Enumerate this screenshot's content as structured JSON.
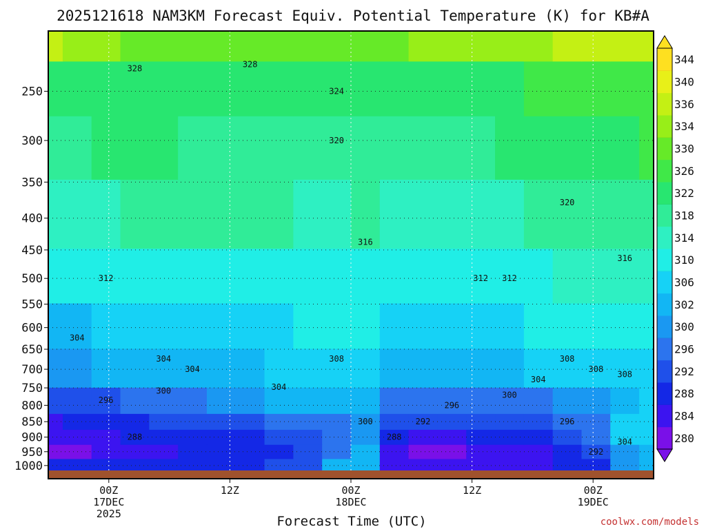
{
  "chart_data": {
    "type": "heatmap",
    "title": "2025121618 NAM3KM Forecast Equiv. Potential Temperature (K) for KB#A",
    "xlabel": "Forecast Time (UTC)",
    "ylabel": "",
    "y_scale": "log",
    "y_inverted": true,
    "ylim": [
      1000,
      200
    ],
    "y_ticks": [
      250,
      300,
      350,
      400,
      450,
      500,
      550,
      600,
      650,
      700,
      750,
      800,
      850,
      900,
      950,
      1000
    ],
    "x_range_hours": [
      0,
      60
    ],
    "x_ticks": [
      {
        "hour": 6,
        "lines": [
          "00Z",
          "17DEC",
          "2025"
        ]
      },
      {
        "hour": 18,
        "lines": [
          "12Z"
        ]
      },
      {
        "hour": 30,
        "lines": [
          "00Z",
          "18DEC"
        ]
      },
      {
        "hour": 42,
        "lines": [
          "12Z"
        ]
      },
      {
        "hour": 54,
        "lines": [
          "00Z",
          "19DEC"
        ]
      }
    ],
    "grid": true,
    "colorbar": {
      "position": "right",
      "levels": [
        280,
        284,
        288,
        292,
        296,
        300,
        302,
        306,
        310,
        314,
        318,
        322,
        326,
        330,
        334,
        336,
        340,
        344
      ],
      "colors": [
        "#7a10e8",
        "#3c14f0",
        "#1428e6",
        "#1f50ea",
        "#2c74ee",
        "#1a98f2",
        "#12b6f4",
        "#16d2f6",
        "#20eee6",
        "#2ef0c2",
        "#30ec98",
        "#28e670",
        "#40e848",
        "#66ea28",
        "#98ee18",
        "#c4f014",
        "#e8f018",
        "#fee020"
      ]
    },
    "series": [
      {
        "pressure": 1000,
        "values": [
          288,
          288,
          288,
          288,
          289,
          290,
          290,
          291,
          292,
          295,
          302,
          304,
          286,
          285,
          285,
          286,
          286,
          287,
          289,
          291,
          300,
          302
        ]
      },
      {
        "pressure": 950,
        "values": [
          282,
          283,
          285,
          286,
          287,
          288,
          288,
          289,
          290,
          294,
          299,
          303,
          284,
          283,
          283,
          284,
          285,
          286,
          288,
          292,
          300,
          303
        ]
      },
      {
        "pressure": 900,
        "values": [
          284,
          285,
          287,
          288,
          289,
          290,
          290,
          291,
          292,
          294,
          298,
          300,
          288,
          286,
          287,
          288,
          289,
          290,
          292,
          296,
          306,
          308
        ]
      },
      {
        "pressure": 850,
        "values": [
          286,
          288,
          289,
          291,
          292,
          293,
          294,
          295,
          296,
          298,
          299,
          300,
          294,
          292,
          292,
          293,
          294,
          295,
          296,
          298,
          306,
          308
        ]
      },
      {
        "pressure": 800,
        "values": [
          292,
          294,
          295,
          296,
          298,
          299,
          300,
          301,
          302,
          303,
          303,
          304,
          298,
          296,
          296,
          297,
          298,
          299,
          300,
          301,
          302,
          306
        ]
      },
      {
        "pressure": 700,
        "values": [
          300,
          301,
          302,
          303,
          303,
          304,
          305,
          305,
          306,
          306,
          307,
          306,
          304,
          302,
          303,
          304,
          305,
          306,
          307,
          308,
          309,
          309
        ]
      },
      {
        "pressure": 600,
        "values": [
          304,
          305,
          306,
          307,
          307,
          308,
          308,
          308,
          309,
          310,
          311,
          311,
          308,
          306,
          307,
          308,
          309,
          310,
          311,
          312,
          312,
          312
        ]
      },
      {
        "pressure": 500,
        "values": [
          310,
          311,
          312,
          313,
          313,
          313,
          313,
          313,
          313,
          313,
          313,
          313,
          312,
          310,
          311,
          312,
          312,
          313,
          314,
          314,
          314,
          314
        ]
      },
      {
        "pressure": 400,
        "values": [
          314,
          316,
          317,
          318,
          319,
          319,
          319,
          318,
          318,
          317,
          317,
          318,
          316,
          314,
          315,
          316,
          317,
          318,
          319,
          320,
          320,
          320
        ]
      },
      {
        "pressure": 300,
        "values": [
          320,
          321,
          322,
          322,
          322,
          321,
          321,
          321,
          320,
          320,
          320,
          321,
          321,
          320,
          320,
          321,
          322,
          323,
          324,
          325,
          325,
          326
        ]
      },
      {
        "pressure": 250,
        "values": [
          325,
          325,
          325,
          325,
          324,
          324,
          324,
          324,
          324,
          324,
          324,
          324,
          325,
          325,
          325,
          325,
          325,
          326,
          326,
          327,
          327,
          327
        ]
      },
      {
        "pressure": 200,
        "values": [
          336,
          334,
          334,
          333,
          332,
          332,
          333,
          333,
          333,
          333,
          332,
          332,
          333,
          334,
          334,
          334,
          334,
          335,
          336,
          336,
          337,
          338
        ]
      }
    ],
    "contour_labels": [
      "328",
      "328",
      "324",
      "320",
      "320",
      "316",
      "316",
      "312",
      "312",
      "308",
      "308",
      "308",
      "304",
      "304",
      "304",
      "304",
      "300",
      "300",
      "300",
      "296",
      "296",
      "296",
      "292",
      "292",
      "288",
      "288",
      "304",
      "312",
      "308",
      "304"
    ]
  },
  "credit": "coolwx.com/models"
}
